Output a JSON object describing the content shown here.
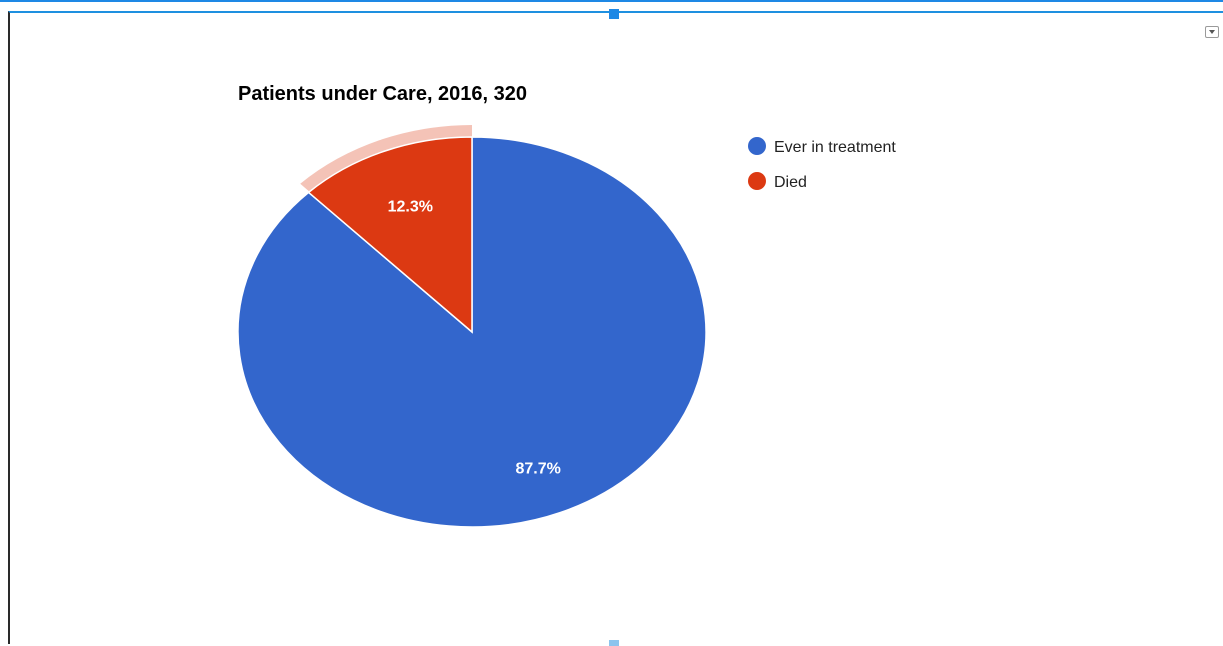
{
  "menu": {
    "icon": "chevron-down-icon"
  },
  "chart_data": {
    "type": "pie",
    "title": "Patients under Care, 2016, 320",
    "slices": [
      {
        "name": "Ever in treatment",
        "value": 87.7,
        "label": "87.7%",
        "color": "#3366cc"
      },
      {
        "name": "Died",
        "value": 12.3,
        "label": "12.3%",
        "color": "#dc3912",
        "highlighted": true
      }
    ],
    "legend": {
      "position": "right"
    }
  }
}
